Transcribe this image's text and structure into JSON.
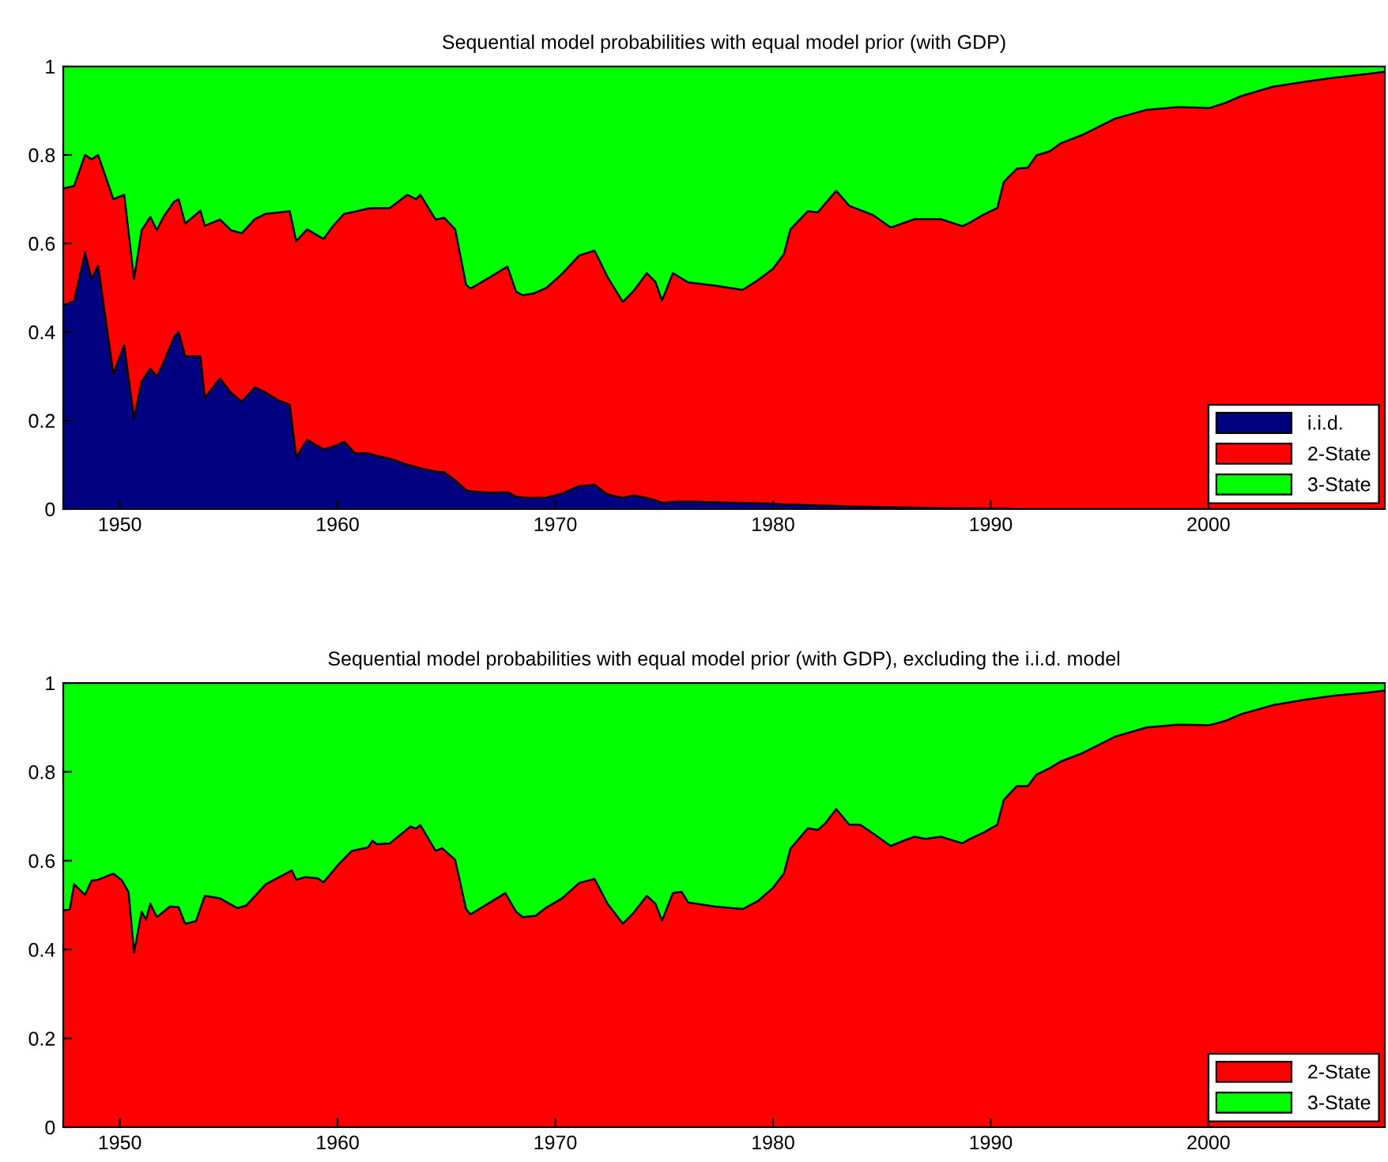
{
  "chart_data": [
    {
      "type": "area",
      "stacked": true,
      "title": "Sequential model probabilities with equal model prior (with GDP)",
      "x": [
        1947.4,
        1947.9,
        1948.4,
        1948.7,
        1949.0,
        1949.7,
        1950.2,
        1950.65,
        1951.0,
        1951.4,
        1951.7,
        1952.0,
        1952.5,
        1952.7,
        1953.0,
        1953.7,
        1953.9,
        1954.6,
        1955.1,
        1955.6,
        1956.2,
        1956.7,
        1957.3,
        1957.8,
        1958.1,
        1958.6,
        1959.35,
        1959.8,
        1960.3,
        1960.8,
        1961.4,
        1961.8,
        1962.4,
        1963.2,
        1963.6,
        1963.8,
        1964.5,
        1964.9,
        1965.4,
        1965.9,
        1966.1,
        1967.0,
        1967.8,
        1968.2,
        1968.5,
        1969.0,
        1969.6,
        1970.3,
        1971.1,
        1971.8,
        1972.4,
        1973.1,
        1973.6,
        1974.2,
        1974.6,
        1974.9,
        1975.4,
        1976.1,
        1977.3,
        1978.6,
        1979.3,
        1980.0,
        1980.5,
        1980.8,
        1981.6,
        1982.05,
        1982.9,
        1983.5,
        1984.6,
        1985.4,
        1986.5,
        1987.7,
        1988.7,
        1989.0,
        1989.66,
        1990.3,
        1990.6,
        1991.2,
        1991.7,
        1992.1,
        1992.7,
        1993.2,
        1994.25,
        1995.7,
        1997.15,
        1998.6,
        2000.05,
        2000.8,
        2001.5,
        2002.95,
        2004.4,
        2005.85,
        2007.3,
        2008.1
      ],
      "series": [
        {
          "name": "i.i.d.",
          "color": "#000080",
          "values": [
            0.46,
            0.47,
            0.58,
            0.52,
            0.55,
            0.305,
            0.37,
            0.204,
            0.288,
            0.317,
            0.3,
            0.33,
            0.39,
            0.4,
            0.345,
            0.345,
            0.251,
            0.295,
            0.263,
            0.243,
            0.275,
            0.263,
            0.245,
            0.236,
            0.117,
            0.156,
            0.135,
            0.141,
            0.152,
            0.126,
            0.126,
            0.12,
            0.114,
            0.1,
            0.095,
            0.092,
            0.085,
            0.083,
            0.065,
            0.043,
            0.04,
            0.037,
            0.038,
            0.028,
            0.026,
            0.025,
            0.026,
            0.035,
            0.052,
            0.055,
            0.033,
            0.025,
            0.031,
            0.025,
            0.02,
            0.014,
            0.016,
            0.017,
            0.015,
            0.014,
            0.013,
            0.012,
            0.01,
            0.01,
            0.009,
            0.008,
            0.007,
            0.006,
            0.005,
            0.004,
            0.003,
            0.002,
            0.002,
            0.002,
            0.001,
            0.001,
            0.001,
            0,
            0,
            0,
            0,
            0,
            0,
            0,
            0,
            0,
            0,
            0,
            0,
            0,
            0,
            0,
            0,
            0
          ]
        },
        {
          "name": "2-State",
          "color": "#ff0000",
          "values": [
            0.264,
            0.26,
            0.22,
            0.27,
            0.25,
            0.395,
            0.34,
            0.316,
            0.342,
            0.343,
            0.33,
            0.33,
            0.305,
            0.3,
            0.3,
            0.329,
            0.389,
            0.359,
            0.367,
            0.38,
            0.38,
            0.404,
            0.425,
            0.437,
            0.488,
            0.476,
            0.475,
            0.499,
            0.515,
            0.546,
            0.553,
            0.56,
            0.566,
            0.61,
            0.605,
            0.618,
            0.569,
            0.575,
            0.567,
            0.464,
            0.458,
            0.487,
            0.51,
            0.463,
            0.457,
            0.462,
            0.474,
            0.496,
            0.521,
            0.529,
            0.491,
            0.443,
            0.462,
            0.508,
            0.493,
            0.457,
            0.517,
            0.495,
            0.49,
            0.481,
            0.504,
            0.531,
            0.566,
            0.622,
            0.664,
            0.662,
            0.712,
            0.679,
            0.659,
            0.632,
            0.652,
            0.653,
            0.637,
            0.644,
            0.664,
            0.679,
            0.738,
            0.769,
            0.771,
            0.799,
            0.808,
            0.826,
            0.846,
            0.882,
            0.902,
            0.908,
            0.906,
            0.918,
            0.933,
            0.954,
            0.965,
            0.975,
            0.983,
            0.988
          ]
        },
        {
          "name": "3-State",
          "color": "#00ff00",
          "values": [
            0.276,
            0.27,
            0.2,
            0.21,
            0.2,
            0.3,
            0.29,
            0.48,
            0.37,
            0.34,
            0.37,
            0.34,
            0.305,
            0.3,
            0.355,
            0.326,
            0.36,
            0.346,
            0.37,
            0.377,
            0.345,
            0.333,
            0.33,
            0.327,
            0.395,
            0.368,
            0.39,
            0.36,
            0.333,
            0.328,
            0.321,
            0.32,
            0.32,
            0.29,
            0.3,
            0.29,
            0.346,
            0.342,
            0.368,
            0.493,
            0.502,
            0.476,
            0.452,
            0.509,
            0.517,
            0.513,
            0.5,
            0.469,
            0.427,
            0.416,
            0.476,
            0.532,
            0.507,
            0.467,
            0.487,
            0.529,
            0.467,
            0.488,
            0.495,
            0.505,
            0.483,
            0.457,
            0.424,
            0.368,
            0.327,
            0.33,
            0.281,
            0.315,
            0.336,
            0.364,
            0.345,
            0.345,
            0.361,
            0.354,
            0.335,
            0.32,
            0.261,
            0.231,
            0.229,
            0.201,
            0.192,
            0.174,
            0.154,
            0.118,
            0.098,
            0.092,
            0.094,
            0.082,
            0.067,
            0.046,
            0.035,
            0.025,
            0.017,
            0.012
          ]
        }
      ],
      "xlim": [
        1947.4,
        2008.1
      ],
      "xticks": [
        1950,
        1960,
        1970,
        1980,
        1990,
        2000
      ],
      "ylim": [
        0,
        1
      ],
      "yticks": [
        0,
        0.2,
        0.4,
        0.6,
        0.8,
        1
      ],
      "grid": false,
      "legend": "bottom right"
    },
    {
      "type": "area",
      "stacked": true,
      "title": "Sequential model probabilities with equal model prior (with GDP), excluding the i.i.d. model",
      "x": [
        1947.4,
        1947.7,
        1947.9,
        1948.4,
        1948.7,
        1949.0,
        1949.7,
        1950.1,
        1950.4,
        1950.65,
        1951.0,
        1951.2,
        1951.4,
        1951.7,
        1952.3,
        1952.7,
        1953.0,
        1953.5,
        1953.9,
        1954.6,
        1955.4,
        1955.8,
        1956.7,
        1957.9,
        1958.1,
        1958.5,
        1959.1,
        1959.35,
        1960.05,
        1960.65,
        1961.4,
        1961.6,
        1961.8,
        1962.4,
        1963.35,
        1963.6,
        1963.8,
        1964.5,
        1964.8,
        1965.4,
        1965.9,
        1966.1,
        1967.0,
        1967.7,
        1968.2,
        1968.5,
        1969.1,
        1969.6,
        1970.3,
        1971.1,
        1971.8,
        1972.4,
        1973.1,
        1973.6,
        1974.2,
        1974.6,
        1974.9,
        1975.4,
        1975.8,
        1976.1,
        1977.3,
        1978.6,
        1979.3,
        1980.0,
        1980.5,
        1980.8,
        1981.6,
        1982.05,
        1982.4,
        1982.9,
        1983.5,
        1984.0,
        1984.6,
        1985.4,
        1986.0,
        1986.5,
        1987.0,
        1987.7,
        1988.7,
        1989.0,
        1989.66,
        1990.3,
        1990.6,
        1991.2,
        1991.7,
        1992.1,
        1992.7,
        1993.2,
        1994.25,
        1995.7,
        1997.15,
        1998.6,
        2000.05,
        2000.8,
        2001.5,
        2002.95,
        2004.4,
        2005.85,
        2007.3,
        2008.1
      ],
      "series": [
        {
          "name": "2-State",
          "color": "#ff0000",
          "values": [
            0.488,
            0.49,
            0.547,
            0.523,
            0.555,
            0.557,
            0.571,
            0.555,
            0.529,
            0.393,
            0.485,
            0.467,
            0.503,
            0.473,
            0.497,
            0.495,
            0.458,
            0.464,
            0.521,
            0.515,
            0.493,
            0.499,
            0.547,
            0.578,
            0.557,
            0.563,
            0.56,
            0.551,
            0.592,
            0.622,
            0.63,
            0.645,
            0.637,
            0.639,
            0.677,
            0.672,
            0.68,
            0.622,
            0.628,
            0.602,
            0.491,
            0.479,
            0.506,
            0.527,
            0.485,
            0.473,
            0.476,
            0.495,
            0.515,
            0.55,
            0.559,
            0.503,
            0.458,
            0.483,
            0.521,
            0.503,
            0.465,
            0.527,
            0.53,
            0.506,
            0.497,
            0.491,
            0.509,
            0.539,
            0.571,
            0.627,
            0.673,
            0.669,
            0.684,
            0.716,
            0.681,
            0.681,
            0.661,
            0.633,
            0.645,
            0.654,
            0.649,
            0.654,
            0.639,
            0.648,
            0.663,
            0.681,
            0.737,
            0.768,
            0.768,
            0.794,
            0.808,
            0.823,
            0.843,
            0.879,
            0.9,
            0.906,
            0.905,
            0.915,
            0.93,
            0.95,
            0.962,
            0.972,
            0.978,
            0.983
          ]
        },
        {
          "name": "3-State",
          "color": "#00ff00",
          "values": [
            0.512,
            0.51,
            0.453,
            0.477,
            0.445,
            0.443,
            0.429,
            0.445,
            0.471,
            0.607,
            0.515,
            0.533,
            0.497,
            0.527,
            0.503,
            0.505,
            0.542,
            0.536,
            0.479,
            0.485,
            0.507,
            0.501,
            0.453,
            0.422,
            0.443,
            0.437,
            0.44,
            0.449,
            0.408,
            0.378,
            0.37,
            0.355,
            0.363,
            0.361,
            0.323,
            0.328,
            0.32,
            0.378,
            0.372,
            0.398,
            0.509,
            0.521,
            0.494,
            0.473,
            0.515,
            0.527,
            0.524,
            0.505,
            0.485,
            0.45,
            0.441,
            0.497,
            0.542,
            0.517,
            0.479,
            0.497,
            0.535,
            0.473,
            0.47,
            0.494,
            0.503,
            0.509,
            0.491,
            0.461,
            0.429,
            0.373,
            0.327,
            0.331,
            0.316,
            0.284,
            0.319,
            0.319,
            0.339,
            0.367,
            0.355,
            0.346,
            0.351,
            0.346,
            0.361,
            0.352,
            0.337,
            0.319,
            0.263,
            0.232,
            0.232,
            0.206,
            0.192,
            0.177,
            0.157,
            0.121,
            0.1,
            0.094,
            0.095,
            0.085,
            0.07,
            0.05,
            0.038,
            0.028,
            0.022,
            0.017
          ]
        }
      ],
      "xlim": [
        1947.4,
        2008.1
      ],
      "xticks": [
        1950,
        1960,
        1970,
        1980,
        1990,
        2000
      ],
      "ylim": [
        0,
        1
      ],
      "yticks": [
        0,
        0.2,
        0.4,
        0.6,
        0.8,
        1
      ],
      "grid": false,
      "legend": "bottom right"
    }
  ]
}
